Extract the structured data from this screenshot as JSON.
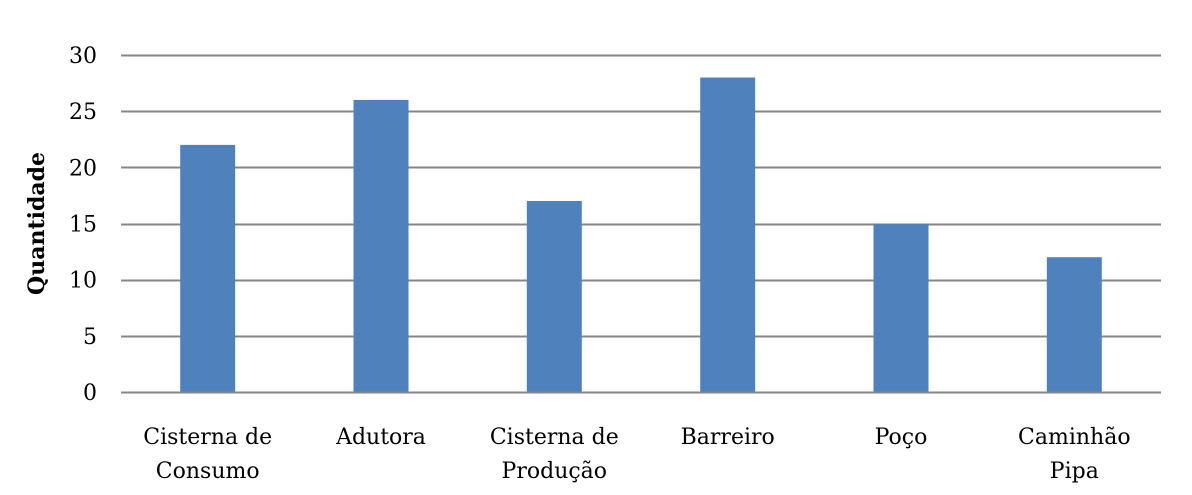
{
  "chart_data": {
    "type": "bar",
    "title": "",
    "xlabel": "",
    "ylabel": "Quantidade",
    "categories": [
      [
        "Cisterna de",
        "Consumo"
      ],
      [
        "Adutora"
      ],
      [
        "Cisterna de",
        "Produção"
      ],
      [
        "Barreiro"
      ],
      [
        "Poço"
      ],
      [
        "Caminhão",
        "Pipa"
      ]
    ],
    "values": [
      22,
      26,
      17,
      28,
      15,
      12
    ],
    "ylim": [
      0,
      30
    ],
    "yticks": [
      0,
      5,
      10,
      15,
      20,
      25,
      30
    ],
    "grid": true,
    "legend": "none",
    "colors": {
      "bar": "#4f81bd",
      "grid": "#868686",
      "axis": "#868686"
    }
  }
}
